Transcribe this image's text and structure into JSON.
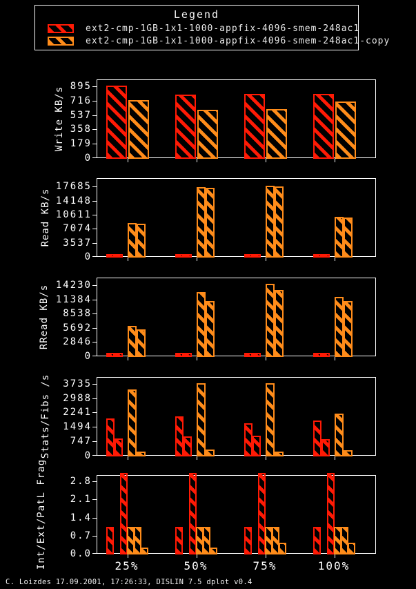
{
  "colors": {
    "red": "#ff1a05",
    "orange": "#ff8c1a",
    "axis": "#ffffff",
    "background": "#000000"
  },
  "legend": {
    "title": "Legend",
    "entries": [
      {
        "label": "ext2-cmp-1GB-1x1-1000-appfix-4096-smem-248ac1",
        "series": "red"
      },
      {
        "label": "ext2-cmp-1GB-1x1-1000-appfix-4096-smem-248ac1-copy",
        "series": "orange"
      }
    ]
  },
  "x_categories": [
    "25%",
    "50%",
    "75%",
    "100%"
  ],
  "footer": "C. Loizdes 17.09.2001, 17:26:33, DISLIN 7.5 dplot v0.4",
  "chart_data": [
    {
      "type": "bar",
      "ylabel": "Write KB/s",
      "categories": [
        "25%",
        "50%",
        "75%",
        "100%"
      ],
      "yticks": [
        0,
        179,
        358,
        537,
        716,
        895
      ],
      "ylim": [
        0,
        980
      ],
      "grid": false,
      "legend_position": "top-shared",
      "series": [
        {
          "name": "ext2-cmp-1GB-1x1-1000-appfix-4096-smem-248ac1",
          "color": "red",
          "values": [
            [
              890
            ],
            [
              785
            ],
            [
              790
            ],
            [
              795
            ]
          ]
        },
        {
          "name": "ext2-cmp-1GB-1x1-1000-appfix-4096-smem-248ac1-copy",
          "color": "orange",
          "values": [
            [
              716
            ],
            [
              595
            ],
            [
              605
            ],
            [
              700
            ]
          ]
        }
      ]
    },
    {
      "type": "bar",
      "ylabel": "Read KB/s",
      "categories": [
        "25%",
        "50%",
        "75%",
        "100%"
      ],
      "yticks": [
        0,
        3537,
        7074,
        10611,
        14148,
        17685
      ],
      "ylim": [
        0,
        19800
      ],
      "grid": false,
      "legend_position": "top-shared",
      "series": [
        {
          "name": "ext2-cmp-1GB-1x1-1000-appfix-4096-smem-248ac1",
          "color": "red",
          "values": [
            [
              590,
              590
            ],
            [
              590,
              590
            ],
            [
              590,
              590
            ],
            [
              590,
              590
            ]
          ]
        },
        {
          "name": "ext2-cmp-1GB-1x1-1000-appfix-4096-smem-248ac1-copy",
          "color": "orange",
          "values": [
            [
              8250,
              8100
            ],
            [
              17400,
              17250
            ],
            [
              17750,
              17600
            ],
            [
              9900,
              9800
            ]
          ]
        }
      ]
    },
    {
      "type": "bar",
      "ylabel": "RRead KB/s",
      "categories": [
        "25%",
        "50%",
        "75%",
        "100%"
      ],
      "yticks": [
        0,
        2846,
        5692,
        8538,
        11384,
        14230
      ],
      "ylim": [
        0,
        15800
      ],
      "grid": false,
      "legend_position": "top-shared",
      "series": [
        {
          "name": "ext2-cmp-1GB-1x1-1000-appfix-4096-smem-248ac1",
          "color": "red",
          "values": [
            [
              500,
              500
            ],
            [
              500,
              500
            ],
            [
              500,
              500
            ],
            [
              500,
              500
            ]
          ]
        },
        {
          "name": "ext2-cmp-1GB-1x1-1000-appfix-4096-smem-248ac1-copy",
          "color": "orange",
          "values": [
            [
              5950,
              5200
            ],
            [
              12700,
              10950
            ],
            [
              14400,
              13100
            ],
            [
              11800,
              11000
            ]
          ]
        }
      ]
    },
    {
      "type": "bar",
      "ylabel": "Stats/Fibs /s",
      "categories": [
        "25%",
        "50%",
        "75%",
        "100%"
      ],
      "yticks": [
        0,
        747,
        1494,
        2241,
        2988,
        3735
      ],
      "ylim": [
        0,
        4080
      ],
      "grid": false,
      "legend_position": "top-shared",
      "series": [
        {
          "name": "ext2-cmp-1GB-1x1-1000-appfix-4096-smem-248ac1",
          "color": "red",
          "values": [
            [
              1880,
              860
            ],
            [
              1990,
              970
            ],
            [
              1640,
              985
            ],
            [
              1780,
              830
            ]
          ]
        },
        {
          "name": "ext2-cmp-1GB-1x1-1000-appfix-4096-smem-248ac1-copy",
          "color": "orange",
          "values": [
            [
              3400,
              180
            ],
            [
              3735,
              270
            ],
            [
              3720,
              180
            ],
            [
              2160,
              250
            ]
          ]
        }
      ]
    },
    {
      "type": "bar",
      "ylabel": "Int/Ext/PatL Frag",
      "categories": [
        "25%",
        "50%",
        "75%",
        "100%"
      ],
      "yticks": [
        "0.0",
        "0.7",
        "1.4",
        "2.1",
        "2.8"
      ],
      "ylim": [
        0,
        3.04
      ],
      "grid": false,
      "legend_position": "top-shared",
      "series": [
        {
          "name": "ext2-cmp-1GB-1x1-1000-appfix-4096-smem-248ac1",
          "color": "red",
          "values": [
            [
              1.0,
              3.1
            ],
            [
              1.0,
              3.1
            ],
            [
              1.0,
              3.1
            ],
            [
              1.0,
              3.1
            ]
          ]
        },
        {
          "name": "ext2-cmp-1GB-1x1-1000-appfix-4096-smem-248ac1-copy",
          "color": "orange",
          "values": [
            [
              1.0,
              1.0,
              0.2
            ],
            [
              1.0,
              1.0,
              0.2
            ],
            [
              1.0,
              1.0,
              0.4
            ],
            [
              1.0,
              1.0,
              0.4
            ]
          ]
        }
      ]
    }
  ]
}
